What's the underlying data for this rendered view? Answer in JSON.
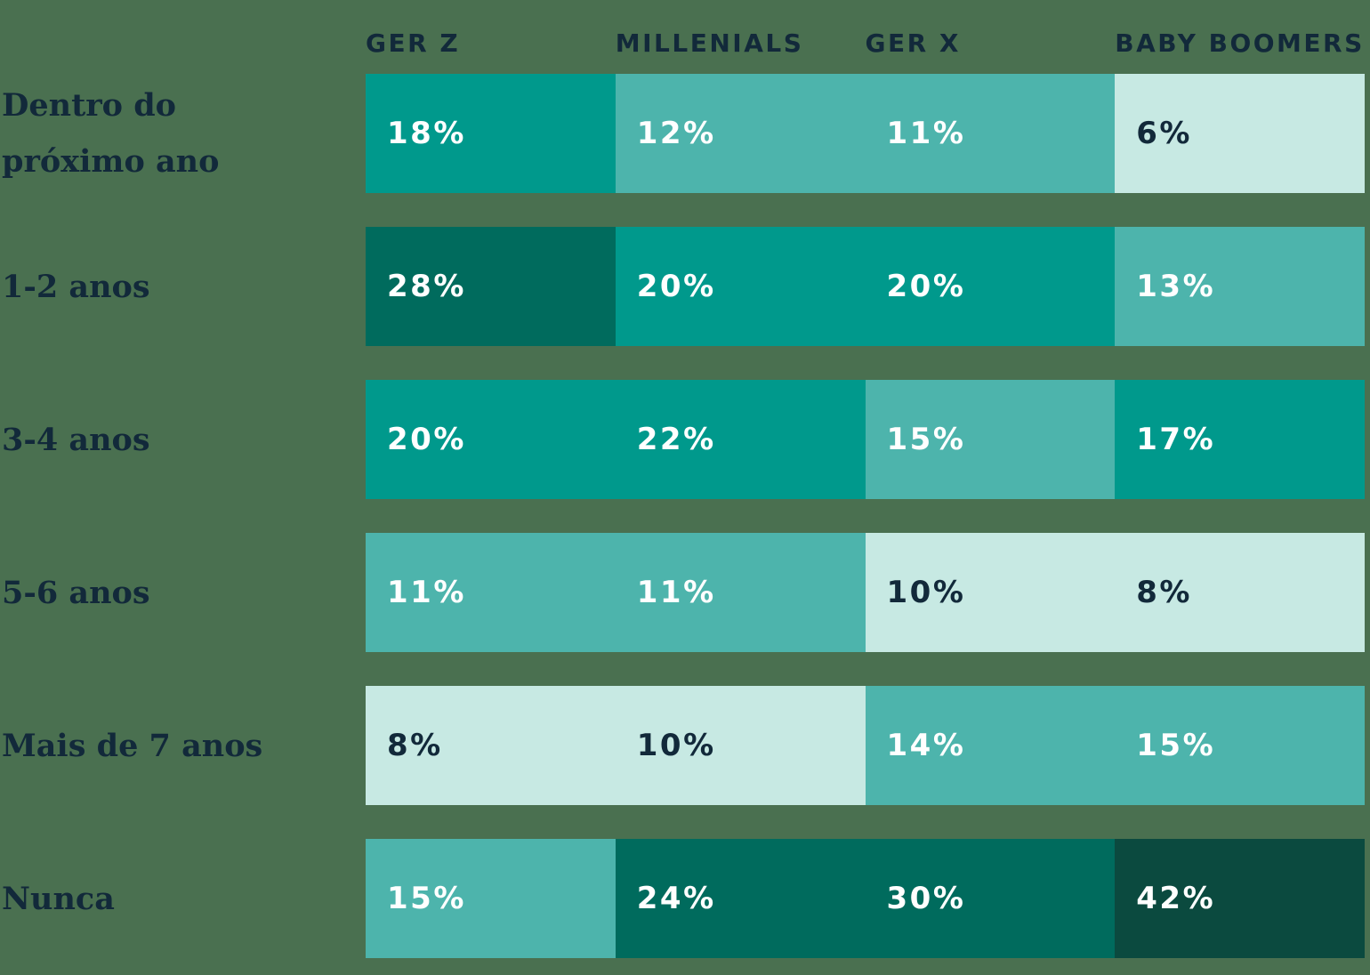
{
  "palette": {
    "background": "#4A7050",
    "navy": "#12293A",
    "white": "#FFFFFF",
    "teal_darkest": "#0B4A3F",
    "teal_dark": "#006B5D",
    "teal_medium": "#00998C",
    "teal_light": "#4DB4AC",
    "teal_lightest": "#C7E9E3"
  },
  "columns": [
    "GER Z",
    "MILLENIALS",
    "GER X",
    "BABY BOOMERS"
  ],
  "rows": [
    {
      "label": "Dentro do\npróximo ano",
      "cells": [
        {
          "value": "18%",
          "bg": "#00998C",
          "fg": "#FFFFFF"
        },
        {
          "value": "12%",
          "bg": "#4DB4AC",
          "fg": "#FFFFFF"
        },
        {
          "value": "11%",
          "bg": "#4DB4AC",
          "fg": "#FFFFFF"
        },
        {
          "value": "6%",
          "bg": "#C7E9E3",
          "fg": "#12293A"
        }
      ]
    },
    {
      "label": "1-2 anos",
      "cells": [
        {
          "value": "28%",
          "bg": "#006B5D",
          "fg": "#FFFFFF"
        },
        {
          "value": "20%",
          "bg": "#00998C",
          "fg": "#FFFFFF"
        },
        {
          "value": "20%",
          "bg": "#00998C",
          "fg": "#FFFFFF"
        },
        {
          "value": "13%",
          "bg": "#4DB4AC",
          "fg": "#FFFFFF"
        }
      ]
    },
    {
      "label": "3-4 anos",
      "cells": [
        {
          "value": "20%",
          "bg": "#00998C",
          "fg": "#FFFFFF"
        },
        {
          "value": "22%",
          "bg": "#00998C",
          "fg": "#FFFFFF"
        },
        {
          "value": "15%",
          "bg": "#4DB4AC",
          "fg": "#FFFFFF"
        },
        {
          "value": "17%",
          "bg": "#00998C",
          "fg": "#FFFFFF"
        }
      ]
    },
    {
      "label": "5-6 anos",
      "cells": [
        {
          "value": "11%",
          "bg": "#4DB4AC",
          "fg": "#FFFFFF"
        },
        {
          "value": "11%",
          "bg": "#4DB4AC",
          "fg": "#FFFFFF"
        },
        {
          "value": "10%",
          "bg": "#C7E9E3",
          "fg": "#12293A"
        },
        {
          "value": "8%",
          "bg": "#C7E9E3",
          "fg": "#12293A"
        }
      ]
    },
    {
      "label": "Mais de 7 anos",
      "cells": [
        {
          "value": "8%",
          "bg": "#C7E9E3",
          "fg": "#12293A"
        },
        {
          "value": "10%",
          "bg": "#C7E9E3",
          "fg": "#12293A"
        },
        {
          "value": "14%",
          "bg": "#4DB4AC",
          "fg": "#FFFFFF"
        },
        {
          "value": "15%",
          "bg": "#4DB4AC",
          "fg": "#FFFFFF"
        }
      ]
    },
    {
      "label": "Nunca",
      "cells": [
        {
          "value": "15%",
          "bg": "#4DB4AC",
          "fg": "#FFFFFF"
        },
        {
          "value": "24%",
          "bg": "#006B5D",
          "fg": "#FFFFFF"
        },
        {
          "value": "30%",
          "bg": "#006B5D",
          "fg": "#FFFFFF"
        },
        {
          "value": "42%",
          "bg": "#0B4A3F",
          "fg": "#FFFFFF"
        }
      ]
    }
  ],
  "chart_data": {
    "type": "heatmap",
    "title": "",
    "x_categories": [
      "Ger Z",
      "Millenials",
      "Ger X",
      "Baby Boomers"
    ],
    "y_categories": [
      "Dentro do próximo ano",
      "1-2 anos",
      "3-4 anos",
      "5-6 anos",
      "Mais de 7 anos",
      "Nunca"
    ],
    "values_percent": [
      [
        18,
        12,
        11,
        6
      ],
      [
        28,
        20,
        20,
        13
      ],
      [
        20,
        22,
        15,
        17
      ],
      [
        11,
        11,
        10,
        8
      ],
      [
        8,
        10,
        14,
        15
      ],
      [
        15,
        24,
        30,
        42
      ]
    ],
    "unit": "%",
    "legend": "none",
    "grid": "off",
    "color_mapping": [
      {
        "range": "6-10",
        "color": "#C7E9E3"
      },
      {
        "range": "11-15",
        "color": "#4DB4AC"
      },
      {
        "range": "17-22",
        "color": "#00998C"
      },
      {
        "range": "24-30",
        "color": "#006B5D"
      },
      {
        "range": "42",
        "color": "#0B4A3F"
      }
    ]
  }
}
